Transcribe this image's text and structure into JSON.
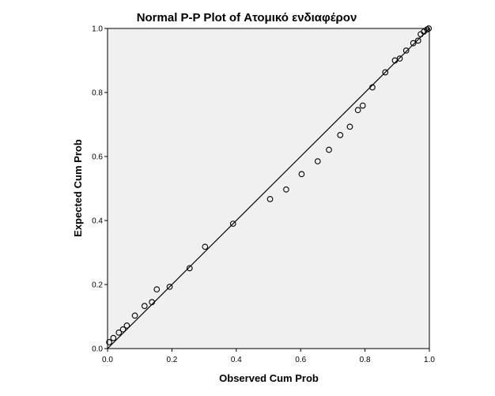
{
  "chart_data": {
    "type": "scatter",
    "title": "Normal P-P Plot of Ατομικό ενδιαφέρον",
    "xlabel": "Observed Cum Prob",
    "ylabel": "Expected Cum Prob",
    "xlim": [
      0,
      1
    ],
    "ylim": [
      0,
      1
    ],
    "xticks": [
      "0.0",
      "0.2",
      "0.4",
      "0.6",
      "0.8",
      "1.0"
    ],
    "yticks": [
      "0.0",
      "0.2",
      "0.4",
      "0.6",
      "0.8",
      "1.0"
    ],
    "reference_line": [
      [
        0,
        0
      ],
      [
        1,
        1
      ]
    ],
    "grid": false,
    "legend": "none",
    "colors": {
      "plot_background": "#f0f0f0",
      "marker": "#000000",
      "line": "#000000"
    },
    "points": [
      {
        "x": 0.005,
        "y": 0.02
      },
      {
        "x": 0.018,
        "y": 0.033
      },
      {
        "x": 0.035,
        "y": 0.05
      },
      {
        "x": 0.048,
        "y": 0.06
      },
      {
        "x": 0.06,
        "y": 0.072
      },
      {
        "x": 0.085,
        "y": 0.103
      },
      {
        "x": 0.115,
        "y": 0.133
      },
      {
        "x": 0.138,
        "y": 0.145
      },
      {
        "x": 0.153,
        "y": 0.185
      },
      {
        "x": 0.193,
        "y": 0.193
      },
      {
        "x": 0.255,
        "y": 0.251
      },
      {
        "x": 0.303,
        "y": 0.318
      },
      {
        "x": 0.39,
        "y": 0.39
      },
      {
        "x": 0.505,
        "y": 0.467
      },
      {
        "x": 0.555,
        "y": 0.497
      },
      {
        "x": 0.603,
        "y": 0.545
      },
      {
        "x": 0.653,
        "y": 0.585
      },
      {
        "x": 0.688,
        "y": 0.621
      },
      {
        "x": 0.723,
        "y": 0.667
      },
      {
        "x": 0.753,
        "y": 0.693
      },
      {
        "x": 0.778,
        "y": 0.745
      },
      {
        "x": 0.793,
        "y": 0.759
      },
      {
        "x": 0.823,
        "y": 0.816
      },
      {
        "x": 0.863,
        "y": 0.863
      },
      {
        "x": 0.893,
        "y": 0.9
      },
      {
        "x": 0.908,
        "y": 0.906
      },
      {
        "x": 0.928,
        "y": 0.931
      },
      {
        "x": 0.95,
        "y": 0.954
      },
      {
        "x": 0.965,
        "y": 0.962
      },
      {
        "x": 0.973,
        "y": 0.982
      },
      {
        "x": 0.983,
        "y": 0.99
      },
      {
        "x": 0.993,
        "y": 0.997
      },
      {
        "x": 0.998,
        "y": 1.0
      }
    ]
  }
}
